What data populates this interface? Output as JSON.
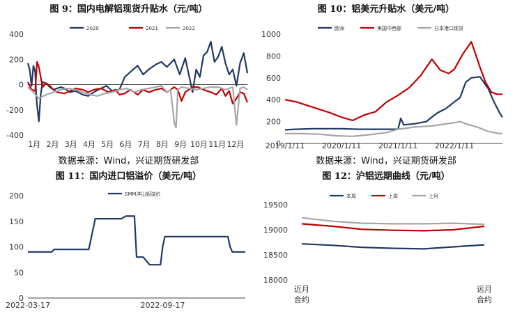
{
  "charts": [
    {
      "title": "图 9：国内电解铝现货升贴水（元/吨）",
      "source": "",
      "type": "line",
      "legend": [
        "2020",
        "2021",
        "2022"
      ],
      "colors": {
        "2020": "#1f3864",
        "2021": "#c00000",
        "2022": "#a6a6a6"
      }
    },
    {
      "title": "图 10：铝美元升贴水（美元/吨）",
      "source": "数据来源：Wind，兴证期货研发部",
      "type": "line",
      "legend": [
        "欧洲",
        "美国中西部",
        "日本港口现货"
      ],
      "colors": {
        "欧洲": "#1f3864",
        "美国中西部": "#c00000",
        "日本港口现货": "#a6a6a6"
      }
    },
    {
      "title": "图 11：国内进口铝溢价（美元/吨）",
      "source": "数据来源：Wind，兴证期货研发部",
      "type": "line",
      "legend": [
        "SMM洋山铝溢价"
      ],
      "colors": {
        "SMM洋山铝溢价": "#1f3864"
      }
    },
    {
      "title": "图 12：沪铝远期曲线（元/吨）",
      "source": "",
      "type": "line",
      "legend": [
        "本周",
        "上周",
        "上月"
      ],
      "colors": {
        "本周": "#1f3864",
        "上周": "#c00000",
        "上月": "#a6a6a6"
      }
    }
  ],
  "chart_data": [
    {
      "type": "line",
      "title": "图 9：国内电解铝现货升贴水（元/吨）",
      "x_ticks": [
        "1月",
        "2月",
        "3月",
        "4月",
        "5月",
        "6月",
        "7月",
        "8月",
        "9月",
        "10月",
        "11月",
        "12月"
      ],
      "ylim": [
        -400,
        400
      ],
      "y_ticks": [
        -400,
        -200,
        0,
        200,
        400
      ],
      "series": [
        {
          "name": "2020",
          "color": "#1f3864",
          "x": [
            0,
            0.1,
            0.2,
            0.3,
            0.4,
            0.45,
            0.5,
            0.6,
            0.7,
            0.8,
            1,
            1.2,
            1.4,
            1.6,
            1.8,
            2,
            2.3,
            2.6,
            3,
            3.3,
            3.6,
            4,
            4.3,
            4.6,
            5,
            5.3,
            5.6,
            6,
            6.3,
            6.6,
            7,
            7.3,
            7.6,
            8,
            8.3,
            8.6,
            9,
            9.2,
            9.4,
            9.6,
            9.8,
            10,
            10.2,
            10.4,
            10.6,
            10.8,
            11,
            11.2,
            11.4,
            11.6,
            11.8,
            12
          ],
          "y": [
            170,
            120,
            -10,
            150,
            100,
            -60,
            -160,
            -290,
            -80,
            20,
            10,
            -20,
            -40,
            -30,
            -20,
            -30,
            -60,
            -50,
            -80,
            -90,
            -60,
            -30,
            -10,
            -50,
            -40,
            60,
            100,
            150,
            80,
            120,
            160,
            180,
            140,
            200,
            80,
            210,
            -60,
            120,
            60,
            230,
            260,
            340,
            180,
            220,
            300,
            170,
            80,
            120,
            -10,
            170,
            250,
            90
          ]
        },
        {
          "name": "2021",
          "color": "#c00000",
          "x": [
            0,
            0.2,
            0.4,
            0.5,
            0.6,
            0.8,
            1,
            1.2,
            1.4,
            1.6,
            2,
            2.3,
            2.6,
            3,
            3.3,
            3.6,
            4,
            4.4,
            4.8,
            5,
            5.3,
            5.6,
            6,
            6.3,
            6.6,
            7,
            7.3,
            7.6,
            8,
            8.2,
            8.4,
            8.6,
            8.8,
            9,
            9.3,
            9.6,
            10,
            10.3,
            10.6,
            10.8,
            11,
            11.2,
            11.4,
            11.6,
            11.8,
            12
          ],
          "y": [
            20,
            -40,
            -50,
            180,
            140,
            -20,
            10,
            -10,
            -40,
            -60,
            -70,
            -50,
            -30,
            -40,
            -60,
            -40,
            -30,
            -60,
            -40,
            -80,
            -70,
            -40,
            -80,
            -40,
            -60,
            -40,
            -30,
            -60,
            -20,
            -40,
            -130,
            -60,
            -40,
            -20,
            -20,
            -40,
            -60,
            -80,
            -30,
            -90,
            -50,
            -150,
            -110,
            -60,
            -70,
            -140
          ]
        },
        {
          "name": "2022",
          "color": "#a6a6a6",
          "x": [
            0,
            0.3,
            0.6,
            1,
            1.4,
            1.8,
            2.2,
            2.6,
            3,
            3.4,
            3.8,
            4.2,
            4.6,
            5,
            5.4,
            5.8,
            6.2,
            6.6,
            7,
            7.3,
            7.6,
            7.8,
            8,
            8.1,
            8.2,
            8.4,
            8.8,
            9.2,
            9.6,
            10,
            10.4,
            10.8,
            11.2,
            11.4,
            11.6,
            11.8,
            12
          ],
          "y": [
            -20,
            -60,
            -110,
            -80,
            -60,
            -40,
            -30,
            -40,
            -60,
            -80,
            -90,
            -70,
            -60,
            -40,
            -30,
            -60,
            -40,
            -30,
            -20,
            -10,
            -60,
            -40,
            -300,
            -340,
            -40,
            -20,
            -30,
            -40,
            -30,
            -20,
            -20,
            -40,
            -20,
            -320,
            -30,
            -20,
            -40
          ]
        }
      ]
    },
    {
      "type": "line",
      "title": "图 10：铝美元升贴水（美元/吨）",
      "x_ticks": [
        "2019/1/11",
        "2020/1/11",
        "2021/1/11",
        "2022/1/11"
      ],
      "xlim": [
        2019.0,
        2022.85
      ],
      "ylim": [
        0,
        1000
      ],
      "y_ticks": [
        0,
        200,
        400,
        600,
        800,
        1000
      ],
      "series": [
        {
          "name": "欧洲",
          "color": "#1f3864",
          "x": [
            2019.0,
            2019.2,
            2019.5,
            2019.8,
            2020.0,
            2020.3,
            2020.6,
            2020.9,
            2021.0,
            2021.05,
            2021.1,
            2021.3,
            2021.5,
            2021.7,
            2021.85,
            2022.0,
            2022.1,
            2022.2,
            2022.3,
            2022.45,
            2022.6,
            2022.7,
            2022.8,
            2022.85
          ],
          "y": [
            125,
            130,
            135,
            135,
            135,
            130,
            130,
            130,
            130,
            230,
            170,
            180,
            200,
            280,
            320,
            380,
            420,
            560,
            600,
            610,
            500,
            380,
            280,
            240
          ]
        },
        {
          "name": "美国中西部",
          "color": "#c00000",
          "x": [
            2019.0,
            2019.2,
            2019.5,
            2019.8,
            2020.0,
            2020.2,
            2020.4,
            2020.6,
            2020.8,
            2021.0,
            2021.2,
            2021.4,
            2021.6,
            2021.75,
            2021.9,
            2022.0,
            2022.15,
            2022.3,
            2022.45,
            2022.55,
            2022.65,
            2022.75,
            2022.85
          ],
          "y": [
            400,
            380,
            330,
            280,
            240,
            210,
            260,
            290,
            380,
            440,
            510,
            620,
            770,
            670,
            640,
            680,
            820,
            930,
            700,
            560,
            470,
            450,
            450
          ]
        },
        {
          "name": "日本港口现货",
          "color": "#a6a6a6",
          "x": [
            2019.0,
            2019.3,
            2019.6,
            2019.9,
            2020.2,
            2020.5,
            2020.8,
            2021.0,
            2021.3,
            2021.6,
            2021.8,
            2022.0,
            2022.1,
            2022.2,
            2022.4,
            2022.6,
            2022.8,
            2022.85
          ],
          "y": [
            90,
            90,
            85,
            70,
            65,
            80,
            100,
            130,
            150,
            160,
            175,
            190,
            200,
            180,
            150,
            110,
            90,
            90
          ]
        }
      ]
    },
    {
      "type": "line",
      "title": "图 11：国内进口铝溢价（美元/吨）",
      "x_ticks": [
        "2022-03-17",
        "2022-09-17"
      ],
      "ylim": [
        0,
        200
      ],
      "y_ticks": [
        0,
        50,
        100,
        150,
        200
      ],
      "series": [
        {
          "name": "SMM洋山铝溢价",
          "color": "#1f3864",
          "x": [
            0,
            0.11,
            0.12,
            0.28,
            0.3,
            0.31,
            0.43,
            0.45,
            0.49,
            0.5,
            0.53,
            0.56,
            0.61,
            0.62,
            0.63,
            0.66,
            0.92,
            0.93,
            0.94,
            1.0
          ],
          "y": [
            90,
            90,
            95,
            95,
            135,
            155,
            155,
            160,
            160,
            80,
            80,
            65,
            65,
            100,
            120,
            120,
            120,
            100,
            90,
            90
          ]
        }
      ]
    },
    {
      "type": "line",
      "title": "图 12：沪铝远期曲线（元/吨）",
      "x_ticks": [
        "近月合约",
        "远月合约"
      ],
      "ylim": [
        18000,
        19500
      ],
      "y_ticks": [
        18000,
        18500,
        19000,
        19500
      ],
      "series": [
        {
          "name": "本周",
          "color": "#1f3864",
          "x": [
            0,
            0.17,
            0.33,
            0.5,
            0.67,
            0.83,
            1
          ],
          "y": [
            18720,
            18690,
            18650,
            18630,
            18620,
            18660,
            18700
          ]
        },
        {
          "name": "上周",
          "color": "#c00000",
          "x": [
            0,
            0.17,
            0.33,
            0.5,
            0.67,
            0.83,
            1
          ],
          "y": [
            19120,
            19070,
            19010,
            18990,
            18980,
            19000,
            19070
          ]
        },
        {
          "name": "上月",
          "color": "#a6a6a6",
          "x": [
            0,
            0.17,
            0.33,
            0.5,
            0.67,
            0.83,
            1
          ],
          "y": [
            19240,
            19170,
            19130,
            19120,
            19120,
            19130,
            19110
          ]
        }
      ]
    }
  ]
}
